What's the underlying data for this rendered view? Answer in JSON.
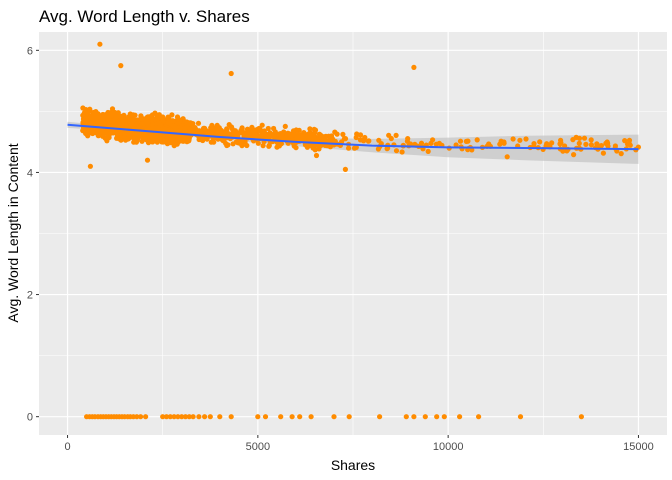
{
  "chart_data": {
    "type": "scatter",
    "title": "Avg. Word Length v. Shares",
    "xlabel": "Shares",
    "ylabel": "Avg. Word Length in Content",
    "xlim": [
      -750,
      15750
    ],
    "ylim": [
      -0.3,
      6.3
    ],
    "xticks": [
      0,
      5000,
      10000,
      15000
    ],
    "xtick_labels": [
      "0",
      "5000",
      "10000",
      "15000"
    ],
    "yticks": [
      0,
      2,
      4,
      6
    ],
    "ytick_labels": [
      "0",
      "2",
      "4",
      "6"
    ],
    "minor_xticks": [
      2500,
      7500,
      12500
    ],
    "minor_yticks": [
      1,
      3,
      5
    ],
    "grid": true,
    "legend": "none",
    "point_color": "#ff8c00",
    "panel_color": "#ebebeb",
    "grid_color": "#ffffff",
    "smooth": {
      "method": "lm (fitted trend with confidence band)",
      "color": "#3366ff",
      "band_color": "#c6c6c6",
      "x": [
        0,
        2000,
        4000,
        6000,
        8000,
        10000,
        12000,
        15000
      ],
      "y": [
        4.78,
        4.68,
        4.58,
        4.5,
        4.44,
        4.41,
        4.4,
        4.38
      ],
      "lower": [
        4.73,
        4.65,
        4.54,
        4.43,
        4.33,
        4.25,
        4.2,
        4.14
      ],
      "upper": [
        4.83,
        4.71,
        4.62,
        4.57,
        4.55,
        4.57,
        4.6,
        4.62
      ]
    },
    "zero_points_x": [
      500,
      580,
      650,
      720,
      800,
      870,
      940,
      1010,
      1080,
      1150,
      1220,
      1290,
      1360,
      1430,
      1500,
      1580,
      1650,
      1730,
      1820,
      1920,
      2050,
      2500,
      2600,
      2700,
      2800,
      2900,
      3000,
      3100,
      3200,
      3300,
      3450,
      3600,
      3750,
      4000,
      4300,
      5000,
      5200,
      5600,
      5900,
      6100,
      6400,
      7000,
      7400,
      8200,
      8900,
      9100,
      9400,
      9700,
      9900,
      10300,
      10800,
      11900,
      13500
    ],
    "outlier_points": [
      [
        850,
        6.1
      ],
      [
        9100,
        5.72
      ],
      [
        1400,
        5.75
      ],
      [
        4300,
        5.62
      ],
      [
        7300,
        4.05
      ],
      [
        600,
        4.1
      ],
      [
        2100,
        4.2
      ]
    ],
    "dense_cloud": {
      "seed": 7,
      "count": 2200,
      "x_range": [
        0,
        15000
      ],
      "y_mean_at_zero": 4.82,
      "y_spread": 0.28
    }
  }
}
